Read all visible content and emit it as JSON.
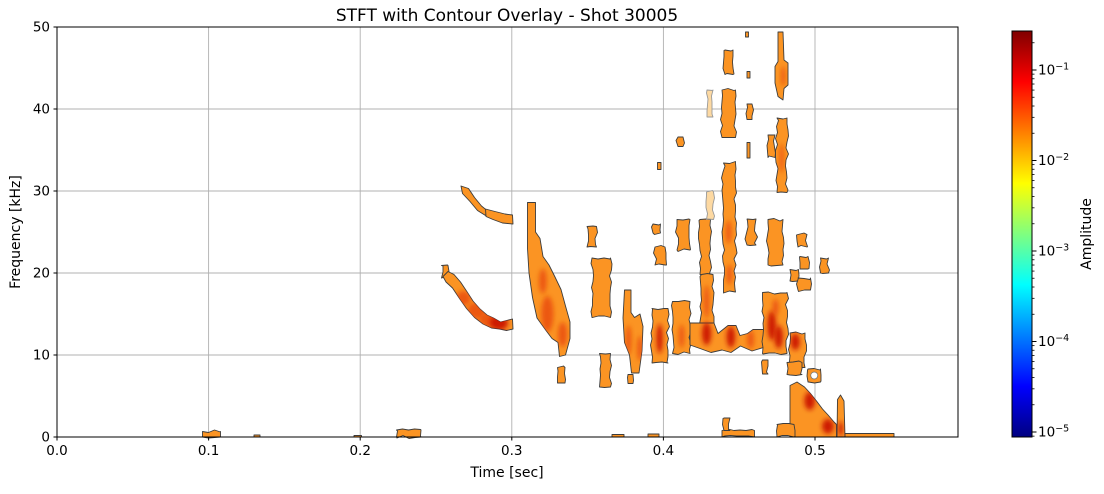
{
  "title": "STFT with Contour Overlay - Shot 30005",
  "chart_data": {
    "type": "heatmap",
    "subtype": "stft-contour-overlay",
    "title": "STFT with Contour Overlay - Shot 30005",
    "xlabel": "Time [sec]",
    "ylabel": "Frequency [kHz]",
    "xlim": [
      0.0,
      0.594
    ],
    "ylim": [
      0,
      50
    ],
    "xticks": {
      "values": [
        0.0,
        0.1,
        0.2,
        0.3,
        0.4,
        0.5
      ],
      "labels": [
        "0.0",
        "0.1",
        "0.2",
        "0.3",
        "0.4",
        "0.5"
      ]
    },
    "yticks": {
      "values": [
        0,
        10,
        20,
        30,
        40,
        50
      ],
      "labels": [
        "0",
        "10",
        "20",
        "30",
        "40",
        "50"
      ]
    },
    "grid": true,
    "grid_color": "#b0b0b0",
    "colorbar": {
      "label": "Amplitude",
      "scale": "log",
      "vmin": 1e-05,
      "vmax": 0.3,
      "major_exponents": [
        -1,
        -2,
        -3,
        -4,
        -5
      ],
      "colormap": "jet",
      "gradient": [
        [
          "0",
          "#000080"
        ],
        [
          "0.125",
          "#0000ff"
        ],
        [
          "0.375",
          "#00ffff"
        ],
        [
          "0.625",
          "#ffff00"
        ],
        [
          "0.875",
          "#ff0000"
        ],
        [
          "1",
          "#800000"
        ]
      ]
    },
    "colors": {
      "blob_fill": "#fb9423",
      "blob_outline": "#3d3d3d",
      "pale_fill": "#fdd9a2",
      "pale_outline": "#999999",
      "core": "#e84a10",
      "core_hot": "#cb1505",
      "spine": "#000000",
      "background": "#ffffff"
    },
    "blobs": [
      {
        "t": [
          0.096,
          0.108
        ],
        "f": [
          0,
          0.7
        ]
      },
      {
        "t": [
          0.13,
          0.134
        ],
        "f": [
          0,
          0.25
        ]
      },
      {
        "t": [
          0.196,
          0.201
        ],
        "f": [
          0,
          0.2
        ]
      },
      {
        "t": [
          0.224,
          0.24
        ],
        "f": [
          0,
          0.85
        ]
      },
      {
        "t": [
          0.366,
          0.374
        ],
        "f": [
          0,
          0.3
        ]
      },
      {
        "t": [
          0.39,
          0.397
        ],
        "f": [
          0,
          0.35
        ]
      },
      {
        "t": [
          0.2535,
          0.258
        ],
        "f": [
          19.4,
          20.9
        ]
      },
      {
        "p": [
          [
            0.2546,
            19.6
          ],
          [
            0.258,
            20.2
          ],
          [
            0.262,
            19.8
          ],
          [
            0.266,
            18.9
          ],
          [
            0.27,
            17.8
          ],
          [
            0.2745,
            16.6
          ],
          [
            0.279,
            15.6
          ],
          [
            0.2835,
            14.9
          ],
          [
            0.288,
            14.5
          ],
          [
            0.2925,
            14.0
          ],
          [
            0.2965,
            14.2
          ],
          [
            0.3005,
            14.4
          ],
          [
            0.3008,
            13.2
          ],
          [
            0.2965,
            13.0
          ],
          [
            0.292,
            13.2
          ],
          [
            0.2865,
            13.3
          ],
          [
            0.281,
            13.8
          ],
          [
            0.2755,
            14.6
          ],
          [
            0.27,
            15.7
          ],
          [
            0.2655,
            16.9
          ],
          [
            0.261,
            18.2
          ],
          [
            0.2565,
            18.9
          ]
        ]
      },
      {
        "p": [
          [
            0.2665,
            30.6
          ],
          [
            0.2715,
            30.3
          ],
          [
            0.2755,
            29.2
          ],
          [
            0.28,
            28.2
          ],
          [
            0.2835,
            27.6
          ],
          [
            0.2825,
            27.0
          ],
          [
            0.2775,
            27.6
          ],
          [
            0.2725,
            28.7
          ],
          [
            0.2675,
            29.7
          ]
        ]
      },
      {
        "p": [
          [
            0.2825,
            27.8
          ],
          [
            0.289,
            27.5
          ],
          [
            0.2955,
            27.2
          ],
          [
            0.3005,
            27.1
          ],
          [
            0.3008,
            26.0
          ],
          [
            0.294,
            26.1
          ],
          [
            0.2875,
            26.5
          ],
          [
            0.283,
            26.9
          ]
        ]
      },
      {
        "p": [
          [
            0.3105,
            28.6
          ],
          [
            0.3155,
            28.6
          ],
          [
            0.3155,
            25.0
          ],
          [
            0.3185,
            24.2
          ],
          [
            0.3205,
            22.0
          ],
          [
            0.3245,
            21.0
          ],
          [
            0.3285,
            19.5
          ],
          [
            0.3325,
            18.0
          ],
          [
            0.3355,
            16.0
          ],
          [
            0.3385,
            14.0
          ],
          [
            0.3385,
            12.0
          ],
          [
            0.3355,
            10.0
          ],
          [
            0.3315,
            9.8
          ],
          [
            0.3305,
            11.5
          ],
          [
            0.3265,
            12.0
          ],
          [
            0.3225,
            13.0
          ],
          [
            0.3165,
            14.5
          ],
          [
            0.3135,
            17.0
          ],
          [
            0.3115,
            20.0
          ],
          [
            0.3105,
            23.0
          ]
        ]
      },
      {
        "t": [
          0.33,
          0.335
        ],
        "f": [
          6.6,
          8.5
        ]
      },
      {
        "t": [
          0.3495,
          0.356
        ],
        "f": [
          23.2,
          25.7
        ]
      },
      {
        "t": [
          0.353,
          0.365
        ],
        "f": [
          14.6,
          21.8
        ]
      },
      {
        "t": [
          0.358,
          0.365
        ],
        "f": [
          6.1,
          10.2
        ]
      },
      {
        "p": [
          [
            0.3745,
            17.9
          ],
          [
            0.3785,
            17.9
          ],
          [
            0.3785,
            15.2
          ],
          [
            0.381,
            14.6
          ],
          [
            0.3845,
            15.0
          ],
          [
            0.3865,
            13.5
          ],
          [
            0.386,
            10.5
          ],
          [
            0.3838,
            7.8
          ],
          [
            0.379,
            7.8
          ],
          [
            0.3775,
            10.0
          ],
          [
            0.3745,
            11.5
          ],
          [
            0.3735,
            14.5
          ]
        ]
      },
      {
        "t": [
          0.3765,
          0.38
        ],
        "f": [
          6.5,
          7.6
        ]
      },
      {
        "t": [
          0.3925,
          0.403
        ],
        "f": [
          9.0,
          15.7
        ]
      },
      {
        "t": [
          0.406,
          0.4175
        ],
        "f": [
          10.2,
          16.5
        ]
      },
      {
        "t": [
          0.393,
          0.398
        ],
        "f": [
          24.9,
          26.0
        ]
      },
      {
        "t": [
          0.3945,
          0.401
        ],
        "f": [
          21.0,
          23.2
        ]
      },
      {
        "t": [
          0.409,
          0.4175
        ],
        "f": [
          22.8,
          26.5
        ]
      },
      {
        "t": [
          0.396,
          0.3985
        ],
        "f": [
          32.6,
          33.5
        ]
      },
      {
        "t": [
          0.4095,
          0.413
        ],
        "f": [
          35.4,
          36.6
        ]
      },
      {
        "t": [
          0.424,
          0.431
        ],
        "f": [
          19.8,
          26.5
        ]
      },
      {
        "t": [
          0.425,
          0.4327
        ],
        "f": [
          13.0,
          19.8
        ]
      },
      {
        "t": [
          0.4285,
          0.433
        ],
        "f": [
          26.5,
          29.9
        ],
        "pale": 1
      },
      {
        "t": [
          0.4287,
          0.4327
        ],
        "f": [
          39.0,
          42.3
        ],
        "pale": 1
      },
      {
        "p": [
          [
            0.4175,
            13.9
          ],
          [
            0.4335,
            13.9
          ],
          [
            0.436,
            12.6
          ],
          [
            0.4425,
            13.6
          ],
          [
            0.448,
            13.6
          ],
          [
            0.4505,
            12.4
          ],
          [
            0.4555,
            12.6
          ],
          [
            0.459,
            13.1
          ],
          [
            0.466,
            13.1
          ],
          [
            0.466,
            10.9
          ],
          [
            0.4585,
            10.5
          ],
          [
            0.451,
            11.1
          ],
          [
            0.4445,
            10.3
          ],
          [
            0.4385,
            10.6
          ],
          [
            0.4315,
            10.3
          ],
          [
            0.424,
            10.8
          ],
          [
            0.4175,
            11.2
          ]
        ]
      },
      {
        "t": [
          0.4385,
          0.4475
        ],
        "f": [
          36.5,
          42.3
        ]
      },
      {
        "t": [
          0.4395,
          0.4475
        ],
        "f": [
          17.7,
          33.4
        ]
      },
      {
        "t": [
          0.4405,
          0.446
        ],
        "f": [
          44.2,
          47.2
        ]
      },
      {
        "t": [
          0.4385,
          0.46
        ],
        "f": [
          0,
          0.8
        ]
      },
      {
        "t": [
          0.44,
          0.4438
        ],
        "f": [
          0.8,
          2.3
        ]
      },
      {
        "t": [
          0.455,
          0.4585
        ],
        "f": [
          38.7,
          40.6
        ]
      },
      {
        "t": [
          0.455,
          0.4572
        ],
        "f": [
          43.8,
          44.6
        ]
      },
      {
        "t": [
          0.455,
          0.4572
        ],
        "f": [
          34.0,
          35.9
        ]
      },
      {
        "t": [
          0.454,
          0.456
        ],
        "f": [
          48.8,
          49.4
        ]
      },
      {
        "t": [
          0.455,
          0.461
        ],
        "f": [
          23.4,
          26.6
        ]
      },
      {
        "p": [
          [
            0.4755,
            49.4
          ],
          [
            0.479,
            49.4
          ],
          [
            0.4795,
            46.0
          ],
          [
            0.4822,
            45.6
          ],
          [
            0.4822,
            42.9
          ],
          [
            0.4795,
            42.5
          ],
          [
            0.479,
            41.1
          ],
          [
            0.4757,
            41.5
          ],
          [
            0.4736,
            43.2
          ],
          [
            0.4736,
            45.2
          ],
          [
            0.4755,
            45.8
          ]
        ]
      },
      {
        "t": [
          0.4749,
          0.4815
        ],
        "f": [
          29.8,
          38.9
        ]
      },
      {
        "t": [
          0.469,
          0.4736
        ],
        "f": [
          34.1,
          36.8
        ]
      },
      {
        "t": [
          0.469,
          0.479
        ],
        "f": [
          21.0,
          26.5
        ]
      },
      {
        "t": [
          0.4655,
          0.4815
        ],
        "f": [
          10.2,
          17.6
        ]
      },
      {
        "t": [
          0.4888,
          0.4948
        ],
        "f": [
          23.2,
          24.7
        ]
      },
      {
        "t": [
          0.49,
          0.4955
        ],
        "f": [
          20.5,
          22.0
        ]
      },
      {
        "t": [
          0.4835,
          0.489
        ],
        "f": [
          19.0,
          20.4
        ]
      },
      {
        "t": [
          0.4888,
          0.497
        ],
        "f": [
          17.9,
          19.4
        ]
      },
      {
        "t": [
          0.5035,
          0.509
        ],
        "f": [
          20.0,
          21.8
        ]
      },
      {
        "t": [
          0.4835,
          0.4935
        ],
        "f": [
          8.5,
          12.7
        ]
      },
      {
        "t": [
          0.4955,
          0.5035
        ],
        "f": [
          6.7,
          8.3
        ],
        "hole": 1
      },
      {
        "p": [
          [
            0.4835,
            6.3
          ],
          [
            0.488,
            6.7
          ],
          [
            0.493,
            6.1
          ],
          [
            0.497,
            5.3
          ],
          [
            0.501,
            4.4
          ],
          [
            0.505,
            3.4
          ],
          [
            0.509,
            2.6
          ],
          [
            0.5125,
            1.8
          ],
          [
            0.5143,
            1.5
          ],
          [
            0.5143,
            0
          ],
          [
            0.4835,
            0
          ]
        ]
      },
      {
        "p": [
          [
            0.5145,
            0
          ],
          [
            0.515,
            4.6
          ],
          [
            0.5168,
            5.1
          ],
          [
            0.519,
            4.4
          ],
          [
            0.5198,
            0
          ]
        ]
      },
      {
        "t": [
          0.5198,
          0.552
        ],
        "f": [
          0,
          0.4
        ]
      },
      {
        "t": [
          0.4749,
          0.486
        ],
        "f": [
          0,
          1.5
        ]
      },
      {
        "t": [
          0.4815,
          0.4915
        ],
        "f": [
          7.6,
          9.1
        ]
      },
      {
        "t": [
          0.4655,
          0.469
        ],
        "f": [
          7.7,
          9.4
        ]
      }
    ],
    "cores": [
      {
        "t": 0.2765,
        "f": 15.4,
        "rt": 0.006,
        "rf": 1.0
      },
      {
        "t": 0.2845,
        "f": 14.3,
        "rt": 0.006,
        "rf": 0.9
      },
      {
        "t": 0.2915,
        "f": 13.9,
        "rt": 0.006,
        "rf": 0.9,
        "hot": 1
      },
      {
        "t": 0.268,
        "f": 16.9,
        "rt": 0.005,
        "rf": 0.9
      },
      {
        "t": 0.3235,
        "f": 15.0,
        "rt": 0.004,
        "rf": 2.2
      },
      {
        "t": 0.3205,
        "f": 19.0,
        "rt": 0.0025,
        "rf": 1.5
      },
      {
        "t": 0.3335,
        "f": 12.5,
        "rt": 0.003,
        "rf": 1.5
      },
      {
        "t": 0.377,
        "f": 11.8,
        "rt": 0.0018,
        "rf": 1.8
      },
      {
        "t": 0.3845,
        "f": 10.8,
        "rt": 0.0018,
        "rf": 1.5
      },
      {
        "t": 0.3975,
        "f": 12.0,
        "rt": 0.002,
        "rf": 1.8,
        "hot": 1
      },
      {
        "t": 0.412,
        "f": 12.3,
        "rt": 0.0018,
        "rf": 1.4
      },
      {
        "t": 0.4285,
        "f": 12.6,
        "rt": 0.003,
        "rf": 1.4,
        "hot": 1
      },
      {
        "t": 0.4445,
        "f": 12.2,
        "rt": 0.0028,
        "rf": 1.3,
        "hot": 1
      },
      {
        "t": 0.4575,
        "f": 11.9,
        "rt": 0.0022,
        "rf": 1.1
      },
      {
        "t": 0.4285,
        "f": 16.5,
        "rt": 0.0018,
        "rf": 2.0
      },
      {
        "t": 0.443,
        "f": 25.0,
        "rt": 0.0018,
        "rf": 1.4
      },
      {
        "t": 0.4435,
        "f": 19.8,
        "rt": 0.0018,
        "rf": 1.2
      },
      {
        "t": 0.4715,
        "f": 13.6,
        "rt": 0.0028,
        "rf": 1.8,
        "hot": 1
      },
      {
        "t": 0.476,
        "f": 12.2,
        "rt": 0.0028,
        "rf": 1.4,
        "hot": 1
      },
      {
        "t": 0.474,
        "f": 15.8,
        "rt": 0.002,
        "rf": 1.0
      },
      {
        "t": 0.478,
        "f": 34.0,
        "rt": 0.0013,
        "rf": 1.8
      },
      {
        "t": 0.479,
        "f": 44.0,
        "rt": 0.0012,
        "rf": 1.2
      },
      {
        "t": 0.487,
        "f": 11.6,
        "rt": 0.003,
        "rf": 1.0,
        "hot": 1
      },
      {
        "t": 0.4965,
        "f": 4.4,
        "rt": 0.0035,
        "rf": 1.1,
        "hot": 1
      },
      {
        "t": 0.5085,
        "f": 1.3,
        "rt": 0.0038,
        "rf": 0.9,
        "hot": 1
      },
      {
        "t": 0.517,
        "f": 1.0,
        "rt": 0.0015,
        "rf": 0.9,
        "hot": 1
      }
    ]
  }
}
